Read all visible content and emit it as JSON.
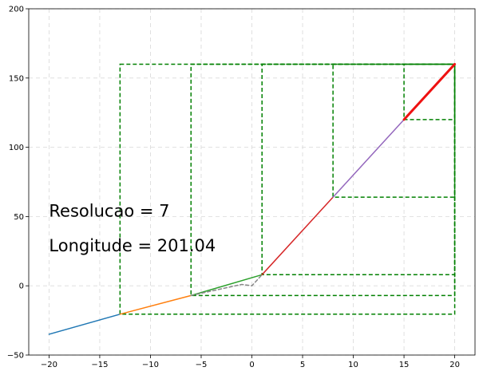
{
  "chart_data": {
    "type": "line",
    "title": "",
    "xlabel": "",
    "ylabel": "",
    "xlim": [
      -22,
      22
    ],
    "ylim": [
      -50,
      200
    ],
    "xticks": [
      -20,
      -15,
      -10,
      -5,
      0,
      5,
      10,
      15,
      20
    ],
    "yticks": [
      -50,
      0,
      50,
      100,
      150,
      200
    ],
    "xtick_labels": [
      "−20",
      "−15",
      "−10",
      "−5",
      "0",
      "5",
      "10",
      "15",
      "20"
    ],
    "ytick_labels": [
      "−50",
      "0",
      "50",
      "100",
      "150",
      "200"
    ],
    "grid": true,
    "series": [
      {
        "color": "#1f77b4",
        "style": "solid",
        "x": [
          -20,
          -13
        ],
        "y": [
          -35,
          -20.5
        ]
      },
      {
        "color": "#ff7f0e",
        "style": "solid",
        "x": [
          -13,
          -6
        ],
        "y": [
          -20.5,
          -7
        ]
      },
      {
        "color": "#2ca02c",
        "style": "solid",
        "x": [
          -6,
          1
        ],
        "y": [
          -7,
          8
        ]
      },
      {
        "color": "#d62728",
        "style": "solid",
        "x": [
          1,
          8
        ],
        "y": [
          8,
          64
        ]
      },
      {
        "color": "#9467bd",
        "style": "solid",
        "x": [
          8,
          15
        ],
        "y": [
          64,
          120
        ]
      },
      {
        "color": "#ee1111",
        "style": "solid",
        "width": 3,
        "x": [
          15,
          20
        ],
        "y": [
          120,
          160
        ]
      },
      {
        "color": "#888888",
        "style": "dashed",
        "x": [
          -6,
          -1,
          0,
          1
        ],
        "y": [
          -7,
          1,
          0,
          8
        ]
      }
    ],
    "boxes": [
      {
        "x": [
          -13,
          20
        ],
        "y": [
          -20.5,
          160
        ]
      },
      {
        "x": [
          -6,
          20
        ],
        "y": [
          -7,
          160
        ]
      },
      {
        "x": [
          1,
          20
        ],
        "y": [
          8,
          160
        ]
      },
      {
        "x": [
          8,
          20
        ],
        "y": [
          64,
          160
        ]
      },
      {
        "x": [
          15,
          20
        ],
        "y": [
          120,
          160
        ]
      }
    ],
    "box_color": "#008000",
    "annotations": [
      {
        "text": "Resolucao = 7",
        "x": -20,
        "y": 50
      },
      {
        "text": "Longitude = 201.04",
        "x": -20,
        "y": 25
      }
    ]
  }
}
